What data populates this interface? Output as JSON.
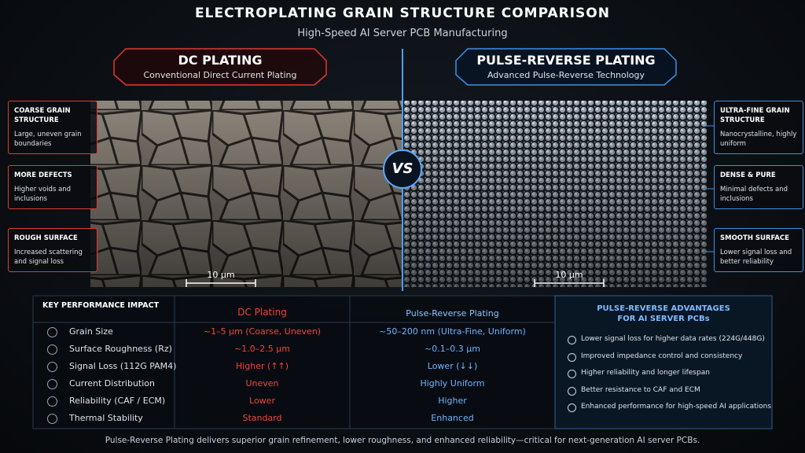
{
  "header": {
    "title": "ELECTROPLATING GRAIN STRUCTURE COMPARISON",
    "subtitle": "High-Speed AI Server PCB Manufacturing"
  },
  "left": {
    "title": "DC PLATING",
    "subtitle": "Conventional Direct Current Plating",
    "scale": "10 μm",
    "callouts": [
      {
        "title": "COARSE GRAIN STRUCTURE",
        "text": "Large, uneven grain boundaries"
      },
      {
        "title": "MORE DEFECTS",
        "text": "Higher voids and inclusions"
      },
      {
        "title": "ROUGH SURFACE",
        "text": "Increased scattering and signal loss"
      }
    ]
  },
  "right": {
    "title": "PULSE-REVERSE PLATING",
    "subtitle": "Advanced Pulse-Reverse Technology",
    "scale": "10 μm",
    "callouts": [
      {
        "title": "ULTRA-FINE GRAIN STRUCTURE",
        "text": "Nanocrystalline, highly uniform"
      },
      {
        "title": "DENSE & PURE",
        "text": "Minimal defects and inclusions"
      },
      {
        "title": "SMOOTH SURFACE",
        "text": "Lower signal loss and better reliability"
      }
    ]
  },
  "vs": "VS",
  "table": {
    "header": [
      "KEY PERFORMANCE IMPACT",
      "DC Plating",
      "Pulse-Reverse Plating"
    ],
    "rows": [
      [
        "Grain Size",
        "~1–5 μm (Coarse, Uneven)",
        "~50–200 nm (Ultra-Fine, Uniform)"
      ],
      [
        "Surface Roughness (Rz)",
        "~1.0–2.5 μm",
        "~0.1–0.3 μm"
      ],
      [
        "Signal Loss (112G PAM4)",
        "Higher (↑↑)",
        "Lower (↓↓)"
      ],
      [
        "Current Distribution",
        "Uneven",
        "Highly Uniform"
      ],
      [
        "Reliability (CAF / ECM)",
        "Lower",
        "Higher"
      ],
      [
        "Thermal Stability",
        "Standard",
        "Enhanced"
      ]
    ]
  },
  "advantages": {
    "title": [
      "PULSE-REVERSE ADVANTAGES",
      "FOR AI SERVER PCBs"
    ],
    "items": [
      "Lower signal loss for higher data rates (224G/448G)",
      "Improved impedance control and consistency",
      "Higher reliability and longer lifespan",
      "Better resistance to CAF and ECM",
      "Enhanced performance for high-speed AI applications"
    ]
  },
  "footer": "Pulse-Reverse Plating delivers superior grain refinement, lower roughness, and enhanced reliability—critical for next-generation AI server PCBs."
}
